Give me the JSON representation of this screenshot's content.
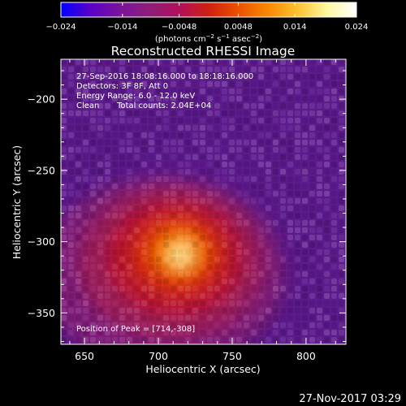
{
  "chart_data": {
    "type": "heatmap",
    "title": "Reconstructed RHESSI Image",
    "xlabel": "Heliocentric X (arcsec)",
    "ylabel": "Heliocentric Y (arcsec)",
    "xlim": [
      634,
      827
    ],
    "ylim": [
      -372,
      -172
    ],
    "x_ticks": [
      650,
      700,
      750,
      800
    ],
    "x_tick_labels": [
      "650",
      "700",
      "750",
      "800"
    ],
    "y_ticks": [
      -200,
      -250,
      -300,
      -350
    ],
    "y_tick_labels": [
      "−200",
      "−250",
      "−300",
      "−350"
    ],
    "colorbar": {
      "range": [
        -0.024,
        0.024
      ],
      "ticks": [
        -0.024,
        -0.014,
        -0.0048,
        0.0048,
        0.014,
        0.024
      ],
      "tick_labels": [
        "−0.024",
        "−0.014",
        "−0.0048",
        "0.0048",
        "0.014",
        "0.024"
      ],
      "units_text": "(photons cm",
      "units_parts": [
        "(photons cm",
        "−2",
        " s",
        "−1",
        " asec",
        "−2",
        ")"
      ],
      "colormap": [
        "#0000ff",
        "#5a00c8",
        "#7a149a",
        "#8e1e7a",
        "#b0105a",
        "#d02010",
        "#ec5000",
        "#f88800",
        "#fcc030",
        "#fff8a0",
        "#ffffff"
      ]
    },
    "peak": {
      "x": 714,
      "y": -308
    },
    "annotations": {
      "time_range": "27-Sep-2016 18:08:16.000 to 18:18:16.000",
      "detectors": "Detectors: 3F 8F, Att 0",
      "energy": "Energy Range: 6.0 - 12.0 keV",
      "method_label": "Clean",
      "total_counts": "Total counts: 2.04E+04",
      "peak_position": "Position of Peak = [714,-308]"
    },
    "timestamp": "27-Nov-2017 03:29"
  }
}
